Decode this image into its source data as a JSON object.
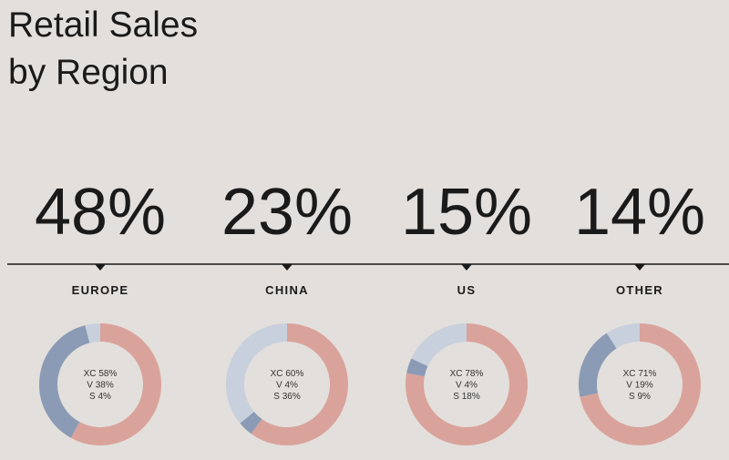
{
  "title": "Retail Sales by Region",
  "chart_data": [
    {
      "type": "donut",
      "title": "EUROPE",
      "share": {
        "value": 48,
        "label": "48%"
      },
      "categories": [
        "XC",
        "V",
        "S"
      ],
      "values": [
        58,
        38,
        4
      ],
      "value_labels": [
        "58%",
        "38%",
        "4%"
      ],
      "colors": [
        "#d9a39b",
        "#8b9bb5",
        "#c7d0dc"
      ]
    },
    {
      "type": "donut",
      "title": "CHINA",
      "share": {
        "value": 23,
        "label": "23%"
      },
      "categories": [
        "XC",
        "V",
        "S"
      ],
      "values": [
        60,
        4,
        36
      ],
      "value_labels": [
        "60%",
        "4%",
        "36%"
      ],
      "colors": [
        "#d9a39b",
        "#8b9bb5",
        "#c7d0dc"
      ]
    },
    {
      "type": "donut",
      "title": "US",
      "share": {
        "value": 15,
        "label": "15%"
      },
      "categories": [
        "XC",
        "V",
        "S"
      ],
      "values": [
        78,
        4,
        18
      ],
      "value_labels": [
        "78%",
        "4%",
        "18%"
      ],
      "colors": [
        "#d9a39b",
        "#8b9bb5",
        "#c7d0dc"
      ]
    },
    {
      "type": "donut",
      "title": "OTHER",
      "share": {
        "value": 14,
        "label": "14%"
      },
      "categories": [
        "XC",
        "V",
        "S"
      ],
      "values": [
        71,
        19,
        9
      ],
      "value_labels": [
        "71%",
        "19%",
        "9%"
      ],
      "colors": [
        "#d9a39b",
        "#8b9bb5",
        "#c7d0dc"
      ]
    }
  ]
}
